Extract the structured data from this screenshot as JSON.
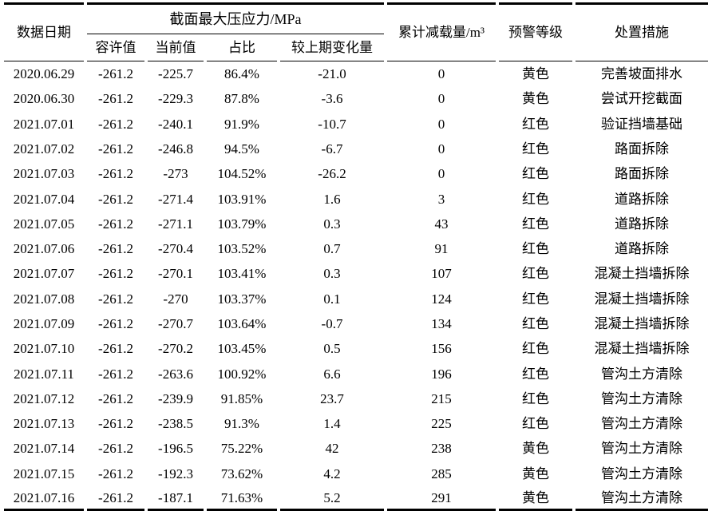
{
  "colors": {
    "background": "#ffffff",
    "text": "#000000",
    "rule": "#000000"
  },
  "table": {
    "header": {
      "col_date": "数据日期",
      "group_stress": "截面最大压应力/MPa",
      "sub_allowable": "容许值",
      "sub_current": "当前值",
      "sub_ratio": "占比",
      "sub_change": "较上期变化量",
      "col_unload": "累计减载量/m³",
      "col_warning": "预警等级",
      "col_measure": "处置措施"
    },
    "rows": [
      {
        "date": "2020.06.29",
        "allowable": "-261.2",
        "current": "-225.7",
        "ratio": "86.4%",
        "change": "-21.0",
        "unload": "0",
        "warning": "黄色",
        "measure": "完善坡面排水"
      },
      {
        "date": "2020.06.30",
        "allowable": "-261.2",
        "current": "-229.3",
        "ratio": "87.8%",
        "change": "-3.6",
        "unload": "0",
        "warning": "黄色",
        "measure": "尝试开挖截面"
      },
      {
        "date": "2021.07.01",
        "allowable": "-261.2",
        "current": "-240.1",
        "ratio": "91.9%",
        "change": "-10.7",
        "unload": "0",
        "warning": "红色",
        "measure": "验证挡墙基础"
      },
      {
        "date": "2021.07.02",
        "allowable": "-261.2",
        "current": "-246.8",
        "ratio": "94.5%",
        "change": "-6.7",
        "unload": "0",
        "warning": "红色",
        "measure": "路面拆除"
      },
      {
        "date": "2021.07.03",
        "allowable": "-261.2",
        "current": "-273",
        "ratio": "104.52%",
        "change": "-26.2",
        "unload": "0",
        "warning": "红色",
        "measure": "路面拆除"
      },
      {
        "date": "2021.07.04",
        "allowable": "-261.2",
        "current": "-271.4",
        "ratio": "103.91%",
        "change": "1.6",
        "unload": "3",
        "warning": "红色",
        "measure": "道路拆除"
      },
      {
        "date": "2021.07.05",
        "allowable": "-261.2",
        "current": "-271.1",
        "ratio": "103.79%",
        "change": "0.3",
        "unload": "43",
        "warning": "红色",
        "measure": "道路拆除"
      },
      {
        "date": "2021.07.06",
        "allowable": "-261.2",
        "current": "-270.4",
        "ratio": "103.52%",
        "change": "0.7",
        "unload": "91",
        "warning": "红色",
        "measure": "道路拆除"
      },
      {
        "date": "2021.07.07",
        "allowable": "-261.2",
        "current": "-270.1",
        "ratio": "103.41%",
        "change": "0.3",
        "unload": "107",
        "warning": "红色",
        "measure": "混凝土挡墙拆除"
      },
      {
        "date": "2021.07.08",
        "allowable": "-261.2",
        "current": "-270",
        "ratio": "103.37%",
        "change": "0.1",
        "unload": "124",
        "warning": "红色",
        "measure": "混凝土挡墙拆除"
      },
      {
        "date": "2021.07.09",
        "allowable": "-261.2",
        "current": "-270.7",
        "ratio": "103.64%",
        "change": "-0.7",
        "unload": "134",
        "warning": "红色",
        "measure": "混凝土挡墙拆除"
      },
      {
        "date": "2021.07.10",
        "allowable": "-261.2",
        "current": "-270.2",
        "ratio": "103.45%",
        "change": "0.5",
        "unload": "156",
        "warning": "红色",
        "measure": "混凝土挡墙拆除"
      },
      {
        "date": "2021.07.11",
        "allowable": "-261.2",
        "current": "-263.6",
        "ratio": "100.92%",
        "change": "6.6",
        "unload": "196",
        "warning": "红色",
        "measure": "管沟土方清除"
      },
      {
        "date": "2021.07.12",
        "allowable": "-261.2",
        "current": "-239.9",
        "ratio": "91.85%",
        "change": "23.7",
        "unload": "215",
        "warning": "红色",
        "measure": "管沟土方清除"
      },
      {
        "date": "2021.07.13",
        "allowable": "-261.2",
        "current": "-238.5",
        "ratio": "91.3%",
        "change": "1.4",
        "unload": "225",
        "warning": "红色",
        "measure": "管沟土方清除"
      },
      {
        "date": "2021.07.14",
        "allowable": "-261.2",
        "current": "-196.5",
        "ratio": "75.22%",
        "change": "42",
        "unload": "238",
        "warning": "黄色",
        "measure": "管沟土方清除"
      },
      {
        "date": "2021.07.15",
        "allowable": "-261.2",
        "current": "-192.3",
        "ratio": "73.62%",
        "change": "4.2",
        "unload": "285",
        "warning": "黄色",
        "measure": "管沟土方清除"
      },
      {
        "date": "2021.07.16",
        "allowable": "-261.2",
        "current": "-187.1",
        "ratio": "71.63%",
        "change": "5.2",
        "unload": "291",
        "warning": "黄色",
        "measure": "管沟土方清除"
      }
    ]
  }
}
